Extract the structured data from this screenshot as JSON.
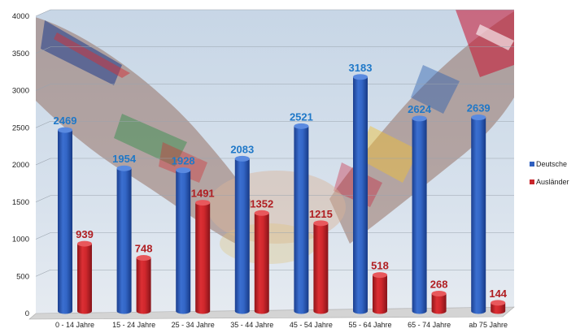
{
  "chart_data": {
    "type": "bar",
    "categories": [
      "0 - 14 Jahre",
      "15 - 24 Jahre",
      "25 - 34 Jahre",
      "35 - 44 Jahre",
      "45 - 54 Jahre",
      "55 - 64 Jahre",
      "65 - 74 Jahre",
      "ab 75 Jahre"
    ],
    "series": [
      {
        "name": "Deutsche",
        "values": [
          2469,
          1954,
          1928,
          2083,
          2521,
          3183,
          2624,
          2639
        ],
        "color": "#2f5fbf",
        "label_color": "#1f78c8"
      },
      {
        "name": "Ausländer",
        "values": [
          939,
          748,
          1491,
          1352,
          1215,
          518,
          268,
          144
        ],
        "color": "#c8262b",
        "label_color": "#b01e22"
      }
    ],
    "yticks": [
      0,
      500,
      1000,
      1500,
      2000,
      2500,
      3000,
      3500,
      4000
    ],
    "ylim": [
      0,
      4000
    ],
    "grid": true,
    "legend_position": "right",
    "background": "photo of a handshake with flag-painted arms"
  }
}
